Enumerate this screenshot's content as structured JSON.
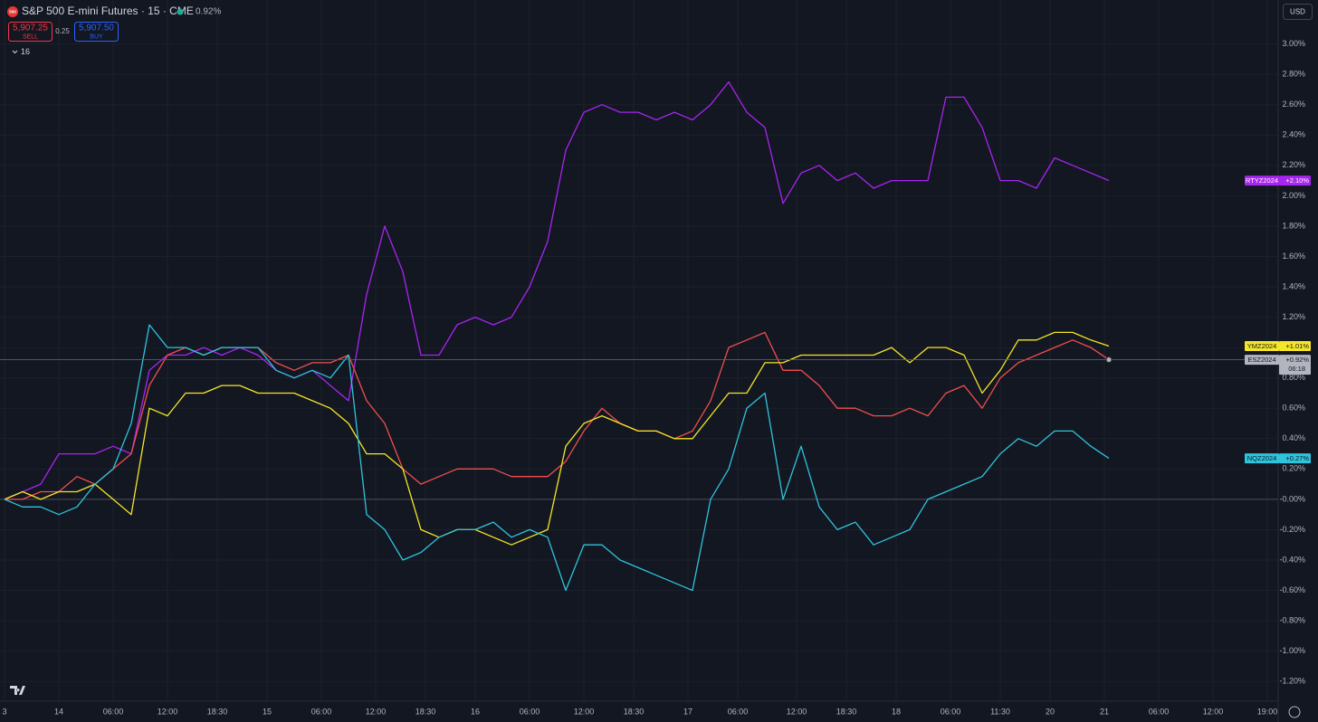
{
  "header": {
    "logo": "500",
    "title": "S&P 500 E-mini Futures · 15 · CME",
    "change": "0.92%",
    "sell_price": "5,907.25",
    "sell_label": "SELL",
    "spread": "0.25",
    "buy_price": "5,907.50",
    "buy_label": "BUY",
    "indicators": "16",
    "currency": "USD"
  },
  "chart_data": {
    "type": "line",
    "x": [
      1,
      5,
      9,
      13,
      17,
      21,
      25,
      29,
      33,
      37,
      41,
      45,
      49,
      53,
      57,
      61,
      65,
      69,
      73,
      77,
      81,
      85,
      89,
      93,
      97,
      101,
      105,
      109,
      113,
      117,
      121,
      125,
      129,
      133,
      137,
      141,
      145,
      149,
      153,
      157,
      161,
      165,
      169,
      173,
      177,
      181,
      185,
      189,
      193,
      197,
      201,
      205,
      209,
      213,
      217,
      221,
      225,
      229,
      233,
      237,
      241,
      245
    ],
    "xlim": [
      0,
      282
    ],
    "xticks": [
      {
        "value": 1,
        "label": "3"
      },
      {
        "value": 13,
        "label": "14"
      },
      {
        "value": 25,
        "label": "06:00"
      },
      {
        "value": 37,
        "label": "12:00"
      },
      {
        "value": 48,
        "label": "18:30"
      },
      {
        "value": 59,
        "label": "15"
      },
      {
        "value": 71,
        "label": "06:00"
      },
      {
        "value": 83,
        "label": "12:00"
      },
      {
        "value": 94,
        "label": "18:30"
      },
      {
        "value": 105,
        "label": "16"
      },
      {
        "value": 117,
        "label": "06:00"
      },
      {
        "value": 129,
        "label": "12:00"
      },
      {
        "value": 140,
        "label": "18:30"
      },
      {
        "value": 152,
        "label": "17"
      },
      {
        "value": 163,
        "label": "06:00"
      },
      {
        "value": 176,
        "label": "12:00"
      },
      {
        "value": 187,
        "label": "18:30"
      },
      {
        "value": 198,
        "label": "18"
      },
      {
        "value": 210,
        "label": "06:00"
      },
      {
        "value": 221,
        "label": "11:30"
      },
      {
        "value": 232,
        "label": "20"
      },
      {
        "value": 244,
        "label": "21"
      },
      {
        "value": 256,
        "label": "06:00"
      },
      {
        "value": 268,
        "label": "12:00"
      },
      {
        "value": 280,
        "label": "19:00"
      }
    ],
    "ylim": [
      -1.33,
      3.29
    ],
    "yticks": [
      {
        "value": 3.0,
        "label": "3.00%"
      },
      {
        "value": 2.8,
        "label": "2.80%"
      },
      {
        "value": 2.6,
        "label": "2.60%"
      },
      {
        "value": 2.4,
        "label": "2.40%"
      },
      {
        "value": 2.2,
        "label": "2.20%"
      },
      {
        "value": 2.0,
        "label": "2.00%"
      },
      {
        "value": 1.8,
        "label": "1.80%"
      },
      {
        "value": 1.6,
        "label": "1.60%"
      },
      {
        "value": 1.4,
        "label": "1.40%"
      },
      {
        "value": 1.2,
        "label": "1.20%"
      },
      {
        "value": 1.0,
        "label": "1.00%"
      },
      {
        "value": 0.8,
        "label": "0.80%"
      },
      {
        "value": 0.6,
        "label": "0.60%"
      },
      {
        "value": 0.4,
        "label": "0.40%"
      },
      {
        "value": 0.2,
        "label": "0.20%"
      },
      {
        "value": 0,
        "label": "-0.00%"
      },
      {
        "value": -0.2,
        "label": "-0.20%"
      },
      {
        "value": -0.4,
        "label": "-0.40%"
      },
      {
        "value": -0.6,
        "label": "-0.60%"
      },
      {
        "value": -0.8,
        "label": "-0.80%"
      },
      {
        "value": -1.0,
        "label": "-1.00%"
      },
      {
        "value": -1.2,
        "label": "-1.20%"
      }
    ],
    "grid": true,
    "baseline": 0,
    "series": [
      {
        "name": "RTYZ2024",
        "color": "#a824f0",
        "text_color": "#ffffff",
        "end_label": "+2.10%",
        "values": [
          0,
          0.05,
          0.1,
          0.3,
          0.3,
          0.3,
          0.35,
          0.3,
          0.85,
          0.95,
          0.95,
          1.0,
          0.95,
          1.0,
          0.95,
          0.85,
          0.8,
          0.85,
          0.75,
          0.65,
          1.35,
          1.8,
          1.5,
          0.95,
          0.95,
          1.15,
          1.2,
          1.15,
          1.2,
          1.4,
          1.7,
          2.3,
          2.55,
          2.6,
          2.55,
          2.55,
          2.5,
          2.55,
          2.5,
          2.6,
          2.75,
          2.55,
          2.45,
          1.95,
          2.15,
          2.2,
          2.1,
          2.15,
          2.05,
          2.1,
          2.1,
          2.1,
          2.65,
          2.65,
          2.45,
          2.1,
          2.1,
          2.05,
          2.25,
          2.2,
          2.15,
          2.1
        ]
      },
      {
        "name": "ESZ2024",
        "color": "#f04e4e",
        "label_color": "#b2b5be",
        "text_color": "#131722",
        "end_label": "+0.92%",
        "countdown": "06:18",
        "current_line": true,
        "values": [
          0,
          0,
          0.05,
          0.05,
          0.15,
          0.1,
          0.2,
          0.3,
          0.75,
          0.95,
          1.0,
          0.95,
          1.0,
          1.0,
          1.0,
          0.9,
          0.85,
          0.9,
          0.9,
          0.95,
          0.65,
          0.5,
          0.2,
          0.1,
          0.15,
          0.2,
          0.2,
          0.2,
          0.15,
          0.15,
          0.15,
          0.25,
          0.45,
          0.6,
          0.5,
          0.45,
          0.45,
          0.4,
          0.45,
          0.65,
          1.0,
          1.05,
          1.1,
          0.85,
          0.85,
          0.75,
          0.6,
          0.6,
          0.55,
          0.55,
          0.6,
          0.55,
          0.7,
          0.75,
          0.6,
          0.8,
          0.9,
          0.95,
          1.0,
          1.05,
          1.0,
          0.92
        ]
      },
      {
        "name": "YMZ2024",
        "color": "#f5e628",
        "text_color": "#131722",
        "end_label": "+1.01%",
        "values": [
          0,
          0.05,
          0,
          0.05,
          0.05,
          0.1,
          0,
          -0.1,
          0.6,
          0.55,
          0.7,
          0.7,
          0.75,
          0.75,
          0.7,
          0.7,
          0.7,
          0.65,
          0.6,
          0.5,
          0.3,
          0.3,
          0.2,
          -0.2,
          -0.25,
          -0.2,
          -0.2,
          -0.25,
          -0.3,
          -0.25,
          -0.2,
          0.35,
          0.5,
          0.55,
          0.5,
          0.45,
          0.45,
          0.4,
          0.4,
          0.55,
          0.7,
          0.7,
          0.9,
          0.9,
          0.95,
          0.95,
          0.95,
          0.95,
          0.95,
          1.0,
          0.9,
          1.0,
          1.0,
          0.95,
          0.7,
          0.85,
          1.05,
          1.05,
          1.1,
          1.1,
          1.05,
          1.01
        ]
      },
      {
        "name": "NQZ2024",
        "color": "#2ec4dc",
        "text_color": "#131722",
        "end_label": "+0.27%",
        "values": [
          0,
          -0.05,
          -0.05,
          -0.1,
          -0.05,
          0.1,
          0.2,
          0.5,
          1.15,
          1.0,
          1.0,
          0.95,
          1.0,
          1.0,
          1.0,
          0.85,
          0.8,
          0.85,
          0.8,
          0.95,
          -0.1,
          -0.2,
          -0.4,
          -0.35,
          -0.25,
          -0.2,
          -0.2,
          -0.15,
          -0.25,
          -0.2,
          -0.25,
          -0.6,
          -0.3,
          -0.3,
          -0.4,
          -0.45,
          -0.5,
          -0.55,
          -0.6,
          0.0,
          0.2,
          0.6,
          0.7,
          0.0,
          0.35,
          -0.05,
          -0.2,
          -0.15,
          -0.3,
          -0.25,
          -0.2,
          0.0,
          0.05,
          0.1,
          0.15,
          0.3,
          0.4,
          0.35,
          0.45,
          0.45,
          0.35,
          0.27
        ]
      }
    ]
  }
}
